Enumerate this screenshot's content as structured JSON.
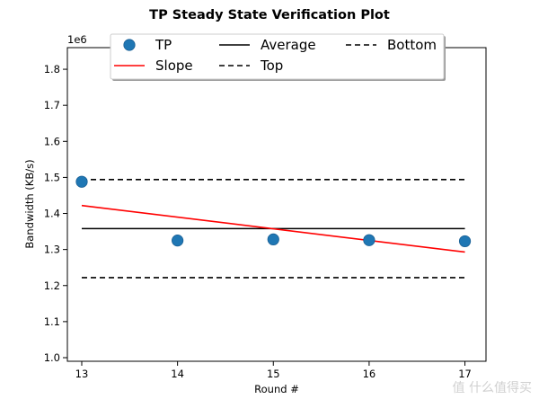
{
  "chart_data": {
    "type": "line",
    "title": "TP Steady State Verification Plot",
    "xlabel": "Round #",
    "ylabel": "Bandwidth (KB/s)",
    "y_offset_label": "1e6",
    "xlim": [
      12.85,
      17.22
    ],
    "ylim": [
      0.99,
      1.86
    ],
    "xticks": [
      13,
      14,
      15,
      16,
      17
    ],
    "yticks": [
      1.0,
      1.1,
      1.2,
      1.3,
      1.4,
      1.5,
      1.6,
      1.7,
      1.8
    ],
    "ytick_labels": [
      "1.0",
      "1.1",
      "1.2",
      "1.3",
      "1.4",
      "1.5",
      "1.6",
      "1.7",
      "1.8"
    ],
    "grid": false,
    "legend_position": "top-center",
    "series": [
      {
        "name": "TP",
        "kind": "scatter",
        "color": "#1f77b4",
        "x": [
          13,
          14,
          15,
          16,
          17
        ],
        "y": [
          1.488,
          1.325,
          1.328,
          1.326,
          1.323
        ]
      },
      {
        "name": "Slope",
        "kind": "line",
        "style": "solid",
        "color": "#ff0000",
        "x": [
          13,
          17
        ],
        "y": [
          1.422,
          1.293
        ]
      },
      {
        "name": "Average",
        "kind": "line",
        "style": "solid",
        "color": "#000000",
        "x": [
          13,
          17
        ],
        "y": [
          1.358,
          1.358
        ]
      },
      {
        "name": "Top",
        "kind": "line",
        "style": "dashed",
        "color": "#000000",
        "x": [
          13,
          17
        ],
        "y": [
          1.494,
          1.494
        ]
      },
      {
        "name": "Bottom",
        "kind": "line",
        "style": "dashed",
        "color": "#000000",
        "x": [
          13,
          17
        ],
        "y": [
          1.222,
          1.222
        ]
      }
    ],
    "legend": [
      [
        "TP",
        "Average",
        "Bottom"
      ],
      [
        "Slope",
        "Top"
      ]
    ]
  },
  "watermark": {
    "text": "值 什么值得买"
  }
}
